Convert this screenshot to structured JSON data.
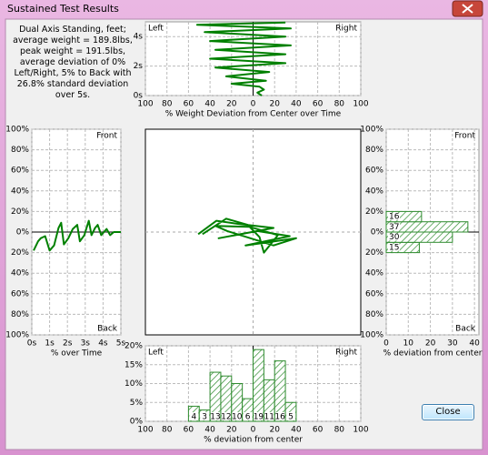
{
  "window": {
    "title": "Sustained Test Results"
  },
  "summary": "Dual Axis Standing, feet; average weight = 189.8lbs, peak weight = 191.5lbs, average deviation of 0% Left/Right, 5% to Back with 26.8% standard deviation over 5s.",
  "button": "Close",
  "chart_data": [
    {
      "type": "line",
      "xlabel": "% Weight Deviation from Center over Time",
      "grid": true,
      "color": "#008000",
      "annotations": [
        {
          "text": "Left",
          "position": "top-left"
        },
        {
          "text": "Right",
          "position": "top-right"
        }
      ],
      "x": [
        8,
        4,
        10,
        6,
        -20,
        12,
        -25,
        15,
        -35,
        30,
        -40,
        30,
        -35,
        35,
        -40,
        30,
        -45,
        35,
        -52,
        30
      ],
      "values": [
        0,
        0.2,
        0.4,
        0.6,
        0.8,
        1.0,
        1.3,
        1.6,
        1.9,
        2.2,
        2.5,
        2.8,
        3.1,
        3.4,
        3.7,
        4.0,
        4.3,
        4.55,
        4.8,
        4.95
      ],
      "xlim": [
        -100,
        100
      ],
      "xticks": [
        {
          "value": -100,
          "label": "100"
        },
        {
          "value": -80,
          "label": "80"
        },
        {
          "value": -60,
          "label": "60"
        },
        {
          "value": -40,
          "label": "40"
        },
        {
          "value": -20,
          "label": "20"
        },
        0,
        20,
        40,
        60,
        80,
        100
      ],
      "ylim": [
        0,
        5
      ],
      "yticks": [
        {
          "value": 0,
          "label": "0s"
        },
        {
          "value": 2,
          "label": "2s"
        },
        {
          "value": 4,
          "label": "4s"
        }
      ]
    },
    {
      "type": "line",
      "xlabel": "% over Time",
      "grid": true,
      "color": "#008000",
      "annotations": [
        {
          "text": "Front",
          "position": "top-right"
        },
        {
          "text": "Back",
          "position": "bottom-right"
        }
      ],
      "x": [
        0.1,
        0.35,
        0.5,
        0.75,
        1.0,
        1.25,
        1.5,
        1.65,
        1.8,
        2.05,
        2.3,
        2.55,
        2.7,
        2.95,
        3.2,
        3.35,
        3.55,
        3.7,
        3.9,
        4.2,
        4.4,
        4.6,
        5.0
      ],
      "values": [
        -18,
        -9,
        -6,
        -4,
        -18,
        -13,
        4,
        9,
        -12,
        -6,
        3,
        7,
        -9,
        -3,
        11,
        -3,
        4,
        7,
        -3,
        3,
        -3,
        0,
        0
      ],
      "xlim": [
        0,
        5
      ],
      "xticks": [
        {
          "value": 0,
          "label": "0s"
        },
        {
          "value": 1,
          "label": "1s"
        },
        {
          "value": 2,
          "label": "2s"
        },
        {
          "value": 3,
          "label": "3s"
        },
        {
          "value": 4,
          "label": "4s"
        },
        {
          "value": 5,
          "label": "5s"
        }
      ],
      "ylim": [
        -100,
        100
      ],
      "yticks": [
        {
          "value": -100,
          "label": "100%"
        },
        {
          "value": -80,
          "label": "80%"
        },
        {
          "value": -60,
          "label": "60%"
        },
        {
          "value": -40,
          "label": "40%"
        },
        {
          "value": -20,
          "label": "20%"
        },
        {
          "value": 0,
          "label": "0%"
        },
        {
          "value": 20,
          "label": "20%"
        },
        {
          "value": 40,
          "label": "40%"
        },
        {
          "value": 60,
          "label": "60%"
        },
        {
          "value": 80,
          "label": "80%"
        },
        {
          "value": 100,
          "label": "100%"
        }
      ]
    },
    {
      "type": "line",
      "grid": false,
      "color": "#008000",
      "x": [
        -51,
        -34,
        -14,
        19,
        -32,
        4,
        34,
        -7,
        40,
        19,
        -24,
        -35,
        -3,
        23,
        10,
        6,
        -5,
        -25,
        -47
      ],
      "values": [
        -2,
        11,
        8,
        4,
        -6,
        1,
        -4,
        -13,
        -6,
        -13,
        1,
        6,
        5,
        -3,
        -20,
        -5,
        7,
        13,
        -2
      ],
      "xlim": [
        -100,
        100
      ],
      "ylim": [
        -100,
        100
      ]
    },
    {
      "type": "histogram",
      "orientation": "horizontal",
      "xlabel": "% deviation from center",
      "grid": true,
      "color": "#2e8b2e",
      "annotations": [
        {
          "text": "Front",
          "position": "top-right"
        },
        {
          "text": "Back",
          "position": "bottom-right"
        }
      ],
      "bins": [
        -20,
        -10,
        0,
        10,
        20
      ],
      "values": [
        15,
        30,
        37,
        16
      ],
      "xlim": [
        0,
        42
      ],
      "xticks": [
        0,
        10,
        20,
        30,
        40
      ],
      "ylim": [
        -100,
        100
      ],
      "yticks": [
        {
          "value": -100,
          "label": "100%"
        },
        {
          "value": -80,
          "label": "80%"
        },
        {
          "value": -60,
          "label": "60%"
        },
        {
          "value": -40,
          "label": "40%"
        },
        {
          "value": -20,
          "label": "20%"
        },
        {
          "value": 0,
          "label": "0%"
        },
        {
          "value": 20,
          "label": "20%"
        },
        {
          "value": 40,
          "label": "40%"
        },
        {
          "value": 60,
          "label": "60%"
        },
        {
          "value": 80,
          "label": "80%"
        },
        {
          "value": 100,
          "label": "100%"
        }
      ]
    },
    {
      "type": "histogram",
      "orientation": "vertical",
      "xlabel": "% deviation from center",
      "grid": true,
      "color": "#2e8b2e",
      "annotations": [
        {
          "text": "Left",
          "position": "top-left"
        },
        {
          "text": "Right",
          "position": "top-right"
        }
      ],
      "bins": [
        -60,
        -50,
        -40,
        -30,
        -20,
        -10,
        0,
        10,
        20,
        30,
        40
      ],
      "values": [
        4,
        3,
        13,
        12,
        10,
        6,
        19,
        11,
        16,
        5
      ],
      "xlim": [
        -100,
        100
      ],
      "xticks": [
        {
          "value": -100,
          "label": "100"
        },
        {
          "value": -80,
          "label": "80"
        },
        {
          "value": -60,
          "label": "60"
        },
        {
          "value": -40,
          "label": "40"
        },
        {
          "value": -20,
          "label": "20"
        },
        0,
        20,
        40,
        60,
        80,
        100
      ],
      "ylim": [
        0,
        20
      ],
      "yticks": [
        {
          "value": 0,
          "label": "0%"
        },
        {
          "value": 5,
          "label": "5%"
        },
        {
          "value": 10,
          "label": "10%"
        },
        {
          "value": 15,
          "label": "15%"
        },
        {
          "value": 20,
          "label": "20%"
        }
      ]
    }
  ]
}
